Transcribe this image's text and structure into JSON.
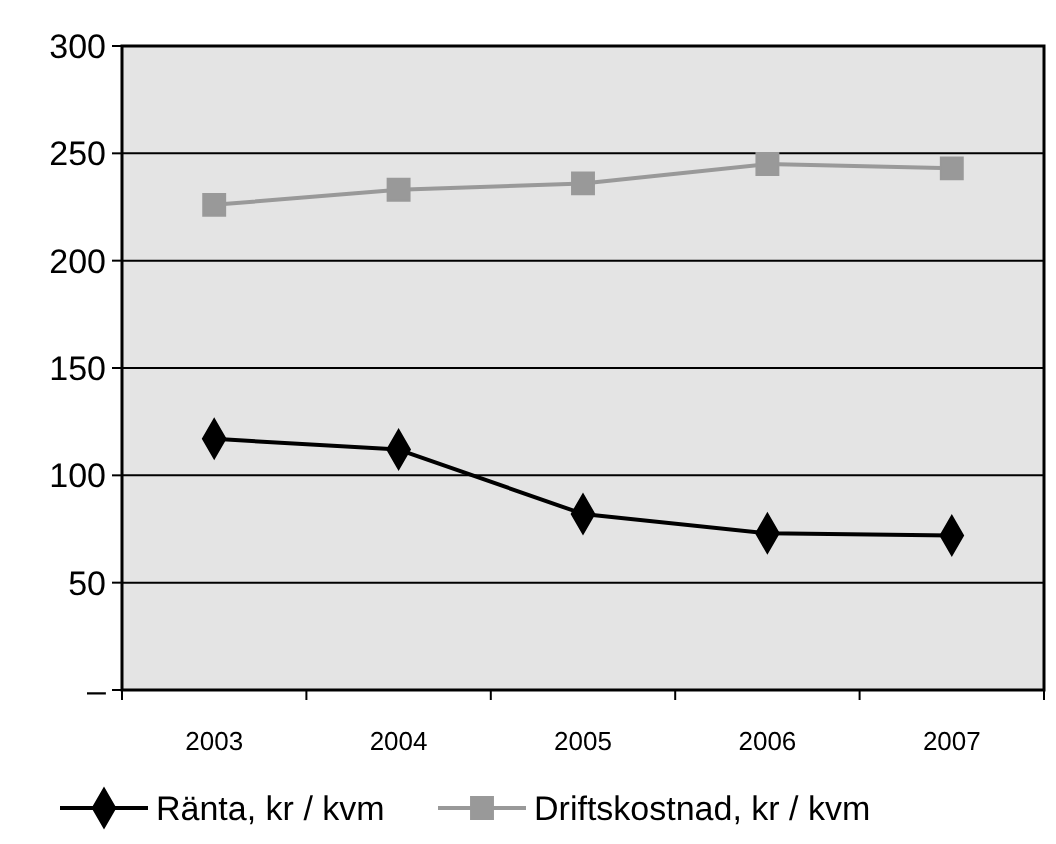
{
  "chart_data": {
    "type": "line",
    "categories": [
      "2003",
      "2004",
      "2005",
      "2006",
      "2007"
    ],
    "series": [
      {
        "name": "Ränta, kr / kvm",
        "color": "#000000",
        "marker": "diamond",
        "values": [
          117,
          112,
          82,
          73,
          72
        ]
      },
      {
        "name": "Driftskostnad, kr / kvm",
        "color": "#999999",
        "marker": "square",
        "values": [
          226,
          233,
          236,
          245,
          243
        ]
      }
    ],
    "ylim": [
      0,
      300
    ],
    "yticks": [
      {
        "value": 0,
        "label": "–"
      },
      50,
      100,
      150,
      200,
      250,
      300
    ],
    "grid": "y",
    "legend": "bottom",
    "line_style": "solid"
  }
}
